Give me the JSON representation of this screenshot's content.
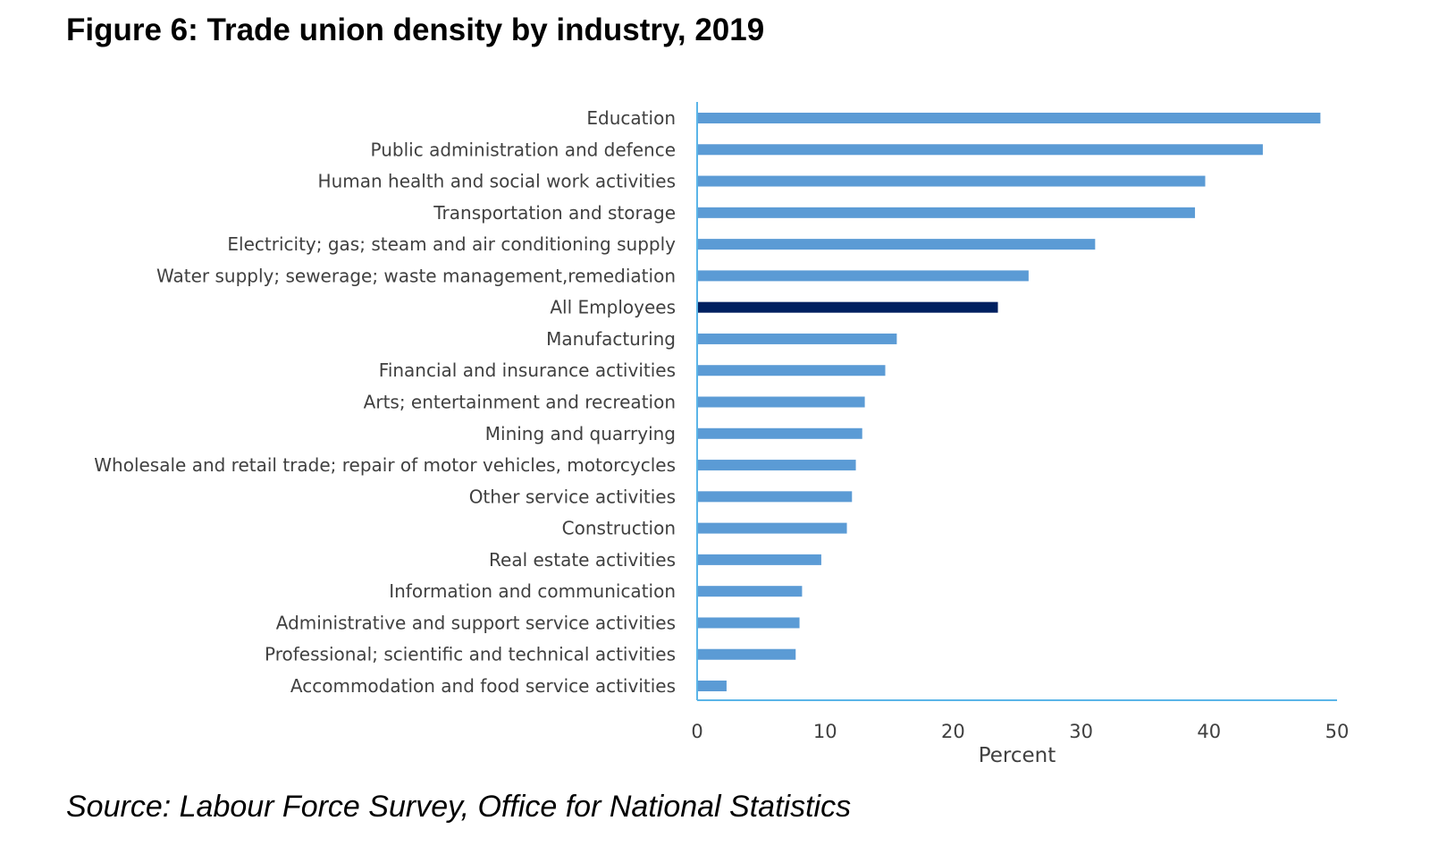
{
  "figure": {
    "title": "Figure 6: Trade union density by industry, 2019",
    "source": "Source: Labour Force Survey, Office for National Statistics"
  },
  "chart_data": {
    "type": "bar",
    "orientation": "horizontal",
    "title": "Figure 6: Trade union density by industry, 2019",
    "xlabel": "Percent",
    "ylabel": "",
    "xlim": [
      0,
      50
    ],
    "xticks": [
      0,
      10,
      20,
      30,
      40,
      50
    ],
    "grid": false,
    "legend": "none",
    "categories": [
      "Education",
      "Public administration and defence",
      "Human health and social work activities",
      "Transportation and storage",
      "Electricity; gas; steam and air conditioning supply",
      "Water supply; sewerage; waste management,remediation",
      "All Employees",
      "Manufacturing",
      "Financial and insurance activities",
      "Arts; entertainment and recreation",
      "Mining and quarrying",
      "Wholesale and retail trade; repair of motor vehicles, motorcycles",
      "Other service activities",
      "Construction",
      "Real estate activities",
      "Information and communication",
      "Administrative and support service activities",
      "Professional; scientific and technical activities",
      "Accommodation and food service activities"
    ],
    "values": [
      48.7,
      44.2,
      39.7,
      38.9,
      31.1,
      25.9,
      23.5,
      15.6,
      14.7,
      13.1,
      12.9,
      12.4,
      12.1,
      11.7,
      9.7,
      8.2,
      8.0,
      7.7,
      2.3
    ],
    "highlight_category": "All Employees",
    "colors": {
      "bar": "#5b9bd5",
      "highlight": "#002060",
      "axis": "#5bb5e8",
      "text": "#404040"
    }
  }
}
